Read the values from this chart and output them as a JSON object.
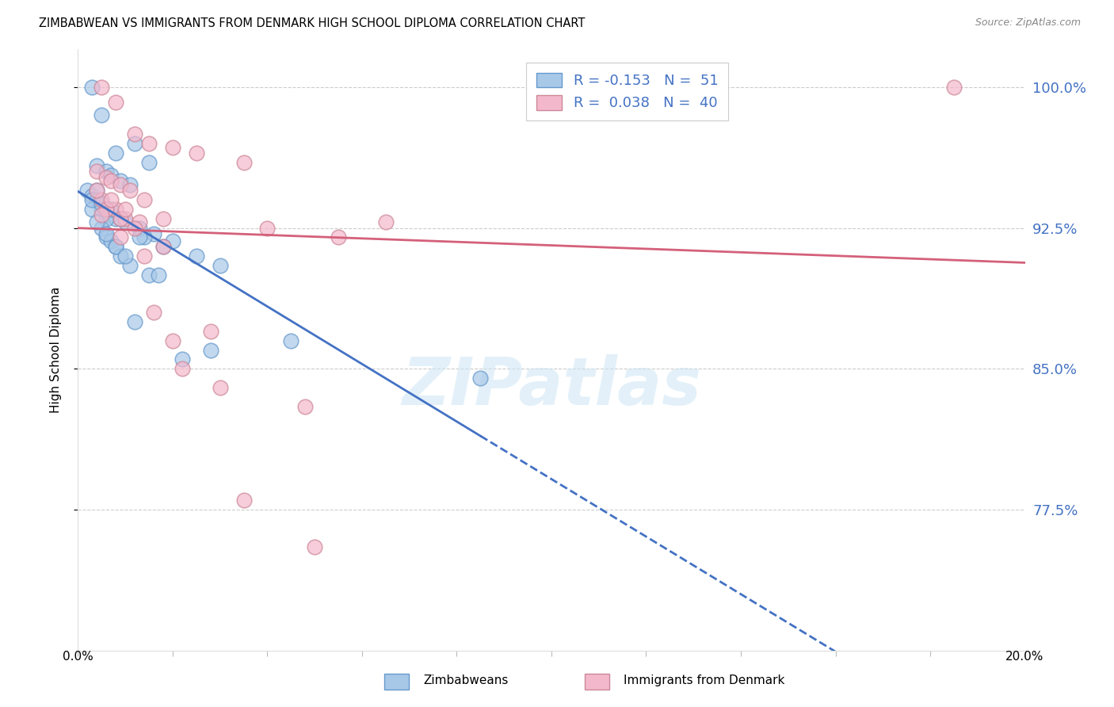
{
  "title": "ZIMBABWEAN VS IMMIGRANTS FROM DENMARK HIGH SCHOOL DIPLOMA CORRELATION CHART",
  "source": "Source: ZipAtlas.com",
  "ylabel": "High School Diploma",
  "xmin": 0.0,
  "xmax": 20.0,
  "ymin": 70.0,
  "ymax": 102.0,
  "yticks": [
    77.5,
    85.0,
    92.5,
    100.0
  ],
  "ytick_labels": [
    "77.5%",
    "85.0%",
    "92.5%",
    "100.0%"
  ],
  "series1_color": "#a8c8e8",
  "series1_edge": "#6699cc",
  "series2_color": "#f4b8cc",
  "series2_edge": "#cc8899",
  "series1_label": "Zimbabweans",
  "series2_label": "Immigrants from Denmark",
  "watermark": "ZIPatlas",
  "blue_line_color": "#4472c4",
  "pink_line_color": "#d4607a",
  "legend_r1": "R = -0.153",
  "legend_n1": "N =  51",
  "legend_r2": "R =  0.038",
  "legend_n2": "N =  40",
  "scatter1_x": [
    0.3,
    0.5,
    1.2,
    0.8,
    1.5,
    0.4,
    0.6,
    0.7,
    0.9,
    1.1,
    0.2,
    0.3,
    0.4,
    0.5,
    0.6,
    0.7,
    0.8,
    1.0,
    1.3,
    1.6,
    2.0,
    2.5,
    3.0,
    0.4,
    0.5,
    0.6,
    1.4,
    1.8,
    4.5,
    0.3,
    0.5,
    0.6,
    0.7,
    0.8,
    0.9,
    1.1,
    1.2,
    2.2,
    0.4,
    0.6,
    0.8,
    1.0,
    1.5,
    2.8,
    8.5,
    0.3,
    0.5,
    0.7,
    0.9,
    1.3,
    1.7
  ],
  "scatter1_y": [
    100.0,
    98.5,
    97.0,
    96.5,
    96.0,
    95.8,
    95.5,
    95.3,
    95.0,
    94.8,
    94.5,
    94.2,
    94.0,
    93.8,
    93.5,
    93.2,
    93.0,
    92.8,
    92.5,
    92.2,
    91.8,
    91.0,
    90.5,
    94.5,
    93.5,
    93.0,
    92.0,
    91.5,
    86.5,
    93.5,
    92.5,
    92.0,
    91.8,
    91.5,
    91.0,
    90.5,
    87.5,
    85.5,
    92.8,
    92.2,
    91.5,
    91.0,
    90.0,
    86.0,
    84.5,
    94.0,
    93.8,
    93.5,
    93.0,
    92.0,
    90.0
  ],
  "scatter2_x": [
    0.5,
    0.8,
    1.2,
    1.5,
    2.0,
    2.5,
    3.5,
    0.4,
    0.6,
    0.7,
    0.9,
    1.1,
    1.4,
    1.8,
    4.0,
    5.5,
    0.5,
    0.8,
    1.0,
    1.3,
    1.6,
    2.2,
    3.0,
    0.6,
    0.9,
    1.2,
    1.8,
    2.8,
    4.8,
    6.5,
    0.4,
    0.7,
    1.0,
    1.4,
    2.0,
    3.5,
    5.0,
    18.5,
    0.5,
    0.9
  ],
  "scatter2_y": [
    100.0,
    99.2,
    97.5,
    97.0,
    96.8,
    96.5,
    96.0,
    95.5,
    95.2,
    95.0,
    94.8,
    94.5,
    94.0,
    93.0,
    92.5,
    92.0,
    94.0,
    93.5,
    93.0,
    92.8,
    88.0,
    85.0,
    84.0,
    93.5,
    93.0,
    92.5,
    91.5,
    87.0,
    83.0,
    92.8,
    94.5,
    94.0,
    93.5,
    91.0,
    86.5,
    78.0,
    75.5,
    100.0,
    93.2,
    92.0
  ]
}
